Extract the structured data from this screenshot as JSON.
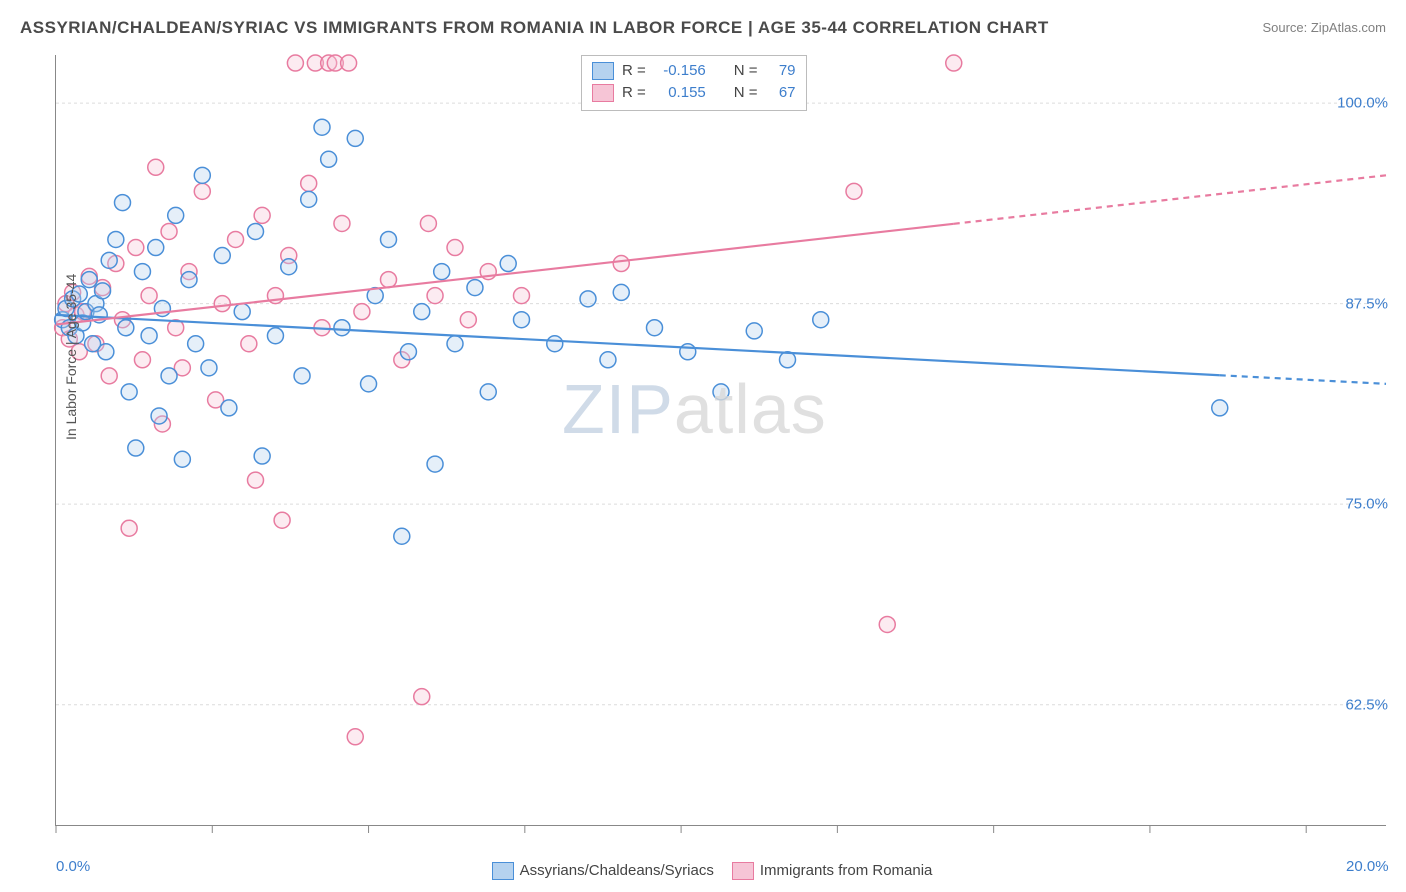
{
  "title": "ASSYRIAN/CHALDEAN/SYRIAC VS IMMIGRANTS FROM ROMANIA IN LABOR FORCE | AGE 35-44 CORRELATION CHART",
  "source_label": "Source: ",
  "source_value": "ZipAtlas.com",
  "ylabel": "In Labor Force | Age 35-44",
  "watermark_part1": "ZIP",
  "watermark_part2": "atlas",
  "chart": {
    "type": "scatter",
    "xlim": [
      0,
      20
    ],
    "ylim": [
      55,
      103
    ],
    "x_tick_positions": [
      0,
      2.35,
      4.7,
      7.05,
      9.4,
      11.75,
      14.1,
      16.45,
      18.8
    ],
    "x_tick_labels_shown": {
      "0": "0.0%",
      "20": "20.0%"
    },
    "y_ticks": [
      62.5,
      75.0,
      87.5,
      100.0
    ],
    "y_tick_labels": [
      "62.5%",
      "75.0%",
      "87.5%",
      "100.0%"
    ],
    "grid_color": "#dcdcdc",
    "grid_dash": "3,3",
    "axis_color": "#888888",
    "background_color": "#ffffff",
    "marker_radius": 8,
    "marker_fill_opacity": 0.35,
    "marker_stroke_width": 1.5,
    "line_width": 2.2
  },
  "series": [
    {
      "id": "assyrians",
      "label": "Assyrians/Chaldeans/Syriacs",
      "color_stroke": "#4a8fd8",
      "color_fill": "#b5d2ef",
      "R": "-0.156",
      "N": "79",
      "trend": {
        "x1": 0,
        "y1": 86.8,
        "x2": 20,
        "y2": 82.5,
        "dash_after_x": 17.5
      },
      "points": [
        [
          0.1,
          86.5
        ],
        [
          0.15,
          87.2
        ],
        [
          0.2,
          86.0
        ],
        [
          0.25,
          87.8
        ],
        [
          0.3,
          85.5
        ],
        [
          0.35,
          88.1
        ],
        [
          0.4,
          86.3
        ],
        [
          0.45,
          87.0
        ],
        [
          0.5,
          89.0
        ],
        [
          0.55,
          85.0
        ],
        [
          0.6,
          87.5
        ],
        [
          0.65,
          86.8
        ],
        [
          0.7,
          88.3
        ],
        [
          0.75,
          84.5
        ],
        [
          0.8,
          90.2
        ],
        [
          0.9,
          91.5
        ],
        [
          1.0,
          93.8
        ],
        [
          1.05,
          86.0
        ],
        [
          1.1,
          82.0
        ],
        [
          1.2,
          78.5
        ],
        [
          1.3,
          89.5
        ],
        [
          1.4,
          85.5
        ],
        [
          1.5,
          91.0
        ],
        [
          1.55,
          80.5
        ],
        [
          1.6,
          87.2
        ],
        [
          1.7,
          83.0
        ],
        [
          1.8,
          93.0
        ],
        [
          1.9,
          77.8
        ],
        [
          2.0,
          89.0
        ],
        [
          2.1,
          85.0
        ],
        [
          2.2,
          95.5
        ],
        [
          2.3,
          83.5
        ],
        [
          2.5,
          90.5
        ],
        [
          2.6,
          81.0
        ],
        [
          2.8,
          87.0
        ],
        [
          3.0,
          92.0
        ],
        [
          3.1,
          78.0
        ],
        [
          3.3,
          85.5
        ],
        [
          3.5,
          89.8
        ],
        [
          3.7,
          83.0
        ],
        [
          3.8,
          94.0
        ],
        [
          4.0,
          98.5
        ],
        [
          4.1,
          96.5
        ],
        [
          4.3,
          86.0
        ],
        [
          4.5,
          97.8
        ],
        [
          4.7,
          82.5
        ],
        [
          4.8,
          88.0
        ],
        [
          5.0,
          91.5
        ],
        [
          5.2,
          73.0
        ],
        [
          5.3,
          84.5
        ],
        [
          5.5,
          87.0
        ],
        [
          5.7,
          77.5
        ],
        [
          5.8,
          89.5
        ],
        [
          6.0,
          85.0
        ],
        [
          6.3,
          88.5
        ],
        [
          6.5,
          82.0
        ],
        [
          6.8,
          90.0
        ],
        [
          7.0,
          86.5
        ],
        [
          7.5,
          85.0
        ],
        [
          8.0,
          87.8
        ],
        [
          8.3,
          84.0
        ],
        [
          8.5,
          88.2
        ],
        [
          9.0,
          86.0
        ],
        [
          9.5,
          84.5
        ],
        [
          10.0,
          82.0
        ],
        [
          10.5,
          85.8
        ],
        [
          11.0,
          84.0
        ],
        [
          11.5,
          86.5
        ],
        [
          17.5,
          81.0
        ]
      ]
    },
    {
      "id": "romania",
      "label": "Immigrants from Romania",
      "color_stroke": "#e87ba0",
      "color_fill": "#f6c5d6",
      "R": "0.155",
      "N": "67",
      "trend": {
        "x1": 0,
        "y1": 86.2,
        "x2": 20,
        "y2": 95.5,
        "dash_after_x": 13.5
      },
      "points": [
        [
          0.1,
          86.0
        ],
        [
          0.15,
          87.5
        ],
        [
          0.2,
          85.3
        ],
        [
          0.25,
          88.2
        ],
        [
          0.3,
          86.8
        ],
        [
          0.35,
          84.5
        ],
        [
          0.4,
          87.0
        ],
        [
          0.5,
          89.2
        ],
        [
          0.6,
          85.0
        ],
        [
          0.7,
          88.5
        ],
        [
          0.8,
          83.0
        ],
        [
          0.9,
          90.0
        ],
        [
          1.0,
          86.5
        ],
        [
          1.1,
          73.5
        ],
        [
          1.2,
          91.0
        ],
        [
          1.3,
          84.0
        ],
        [
          1.4,
          88.0
        ],
        [
          1.5,
          96.0
        ],
        [
          1.6,
          80.0
        ],
        [
          1.7,
          92.0
        ],
        [
          1.8,
          86.0
        ],
        [
          1.9,
          83.5
        ],
        [
          2.0,
          89.5
        ],
        [
          2.2,
          94.5
        ],
        [
          2.4,
          81.5
        ],
        [
          2.5,
          87.5
        ],
        [
          2.7,
          91.5
        ],
        [
          2.9,
          85.0
        ],
        [
          3.0,
          76.5
        ],
        [
          3.1,
          93.0
        ],
        [
          3.3,
          88.0
        ],
        [
          3.4,
          74.0
        ],
        [
          3.5,
          90.5
        ],
        [
          3.6,
          102.5
        ],
        [
          3.8,
          95.0
        ],
        [
          3.9,
          102.5
        ],
        [
          4.0,
          86.0
        ],
        [
          4.1,
          102.5
        ],
        [
          4.2,
          102.5
        ],
        [
          4.3,
          92.5
        ],
        [
          4.4,
          102.5
        ],
        [
          4.5,
          60.5
        ],
        [
          4.6,
          87.0
        ],
        [
          5.0,
          89.0
        ],
        [
          5.2,
          84.0
        ],
        [
          5.5,
          63.0
        ],
        [
          5.6,
          92.5
        ],
        [
          5.7,
          88.0
        ],
        [
          6.0,
          91.0
        ],
        [
          6.2,
          86.5
        ],
        [
          6.5,
          89.5
        ],
        [
          7.0,
          88.0
        ],
        [
          8.5,
          90.0
        ],
        [
          12.0,
          94.5
        ],
        [
          12.5,
          67.5
        ],
        [
          13.5,
          102.5
        ]
      ]
    }
  ],
  "legend": {
    "R_label": "R =",
    "N_label": "N ="
  }
}
